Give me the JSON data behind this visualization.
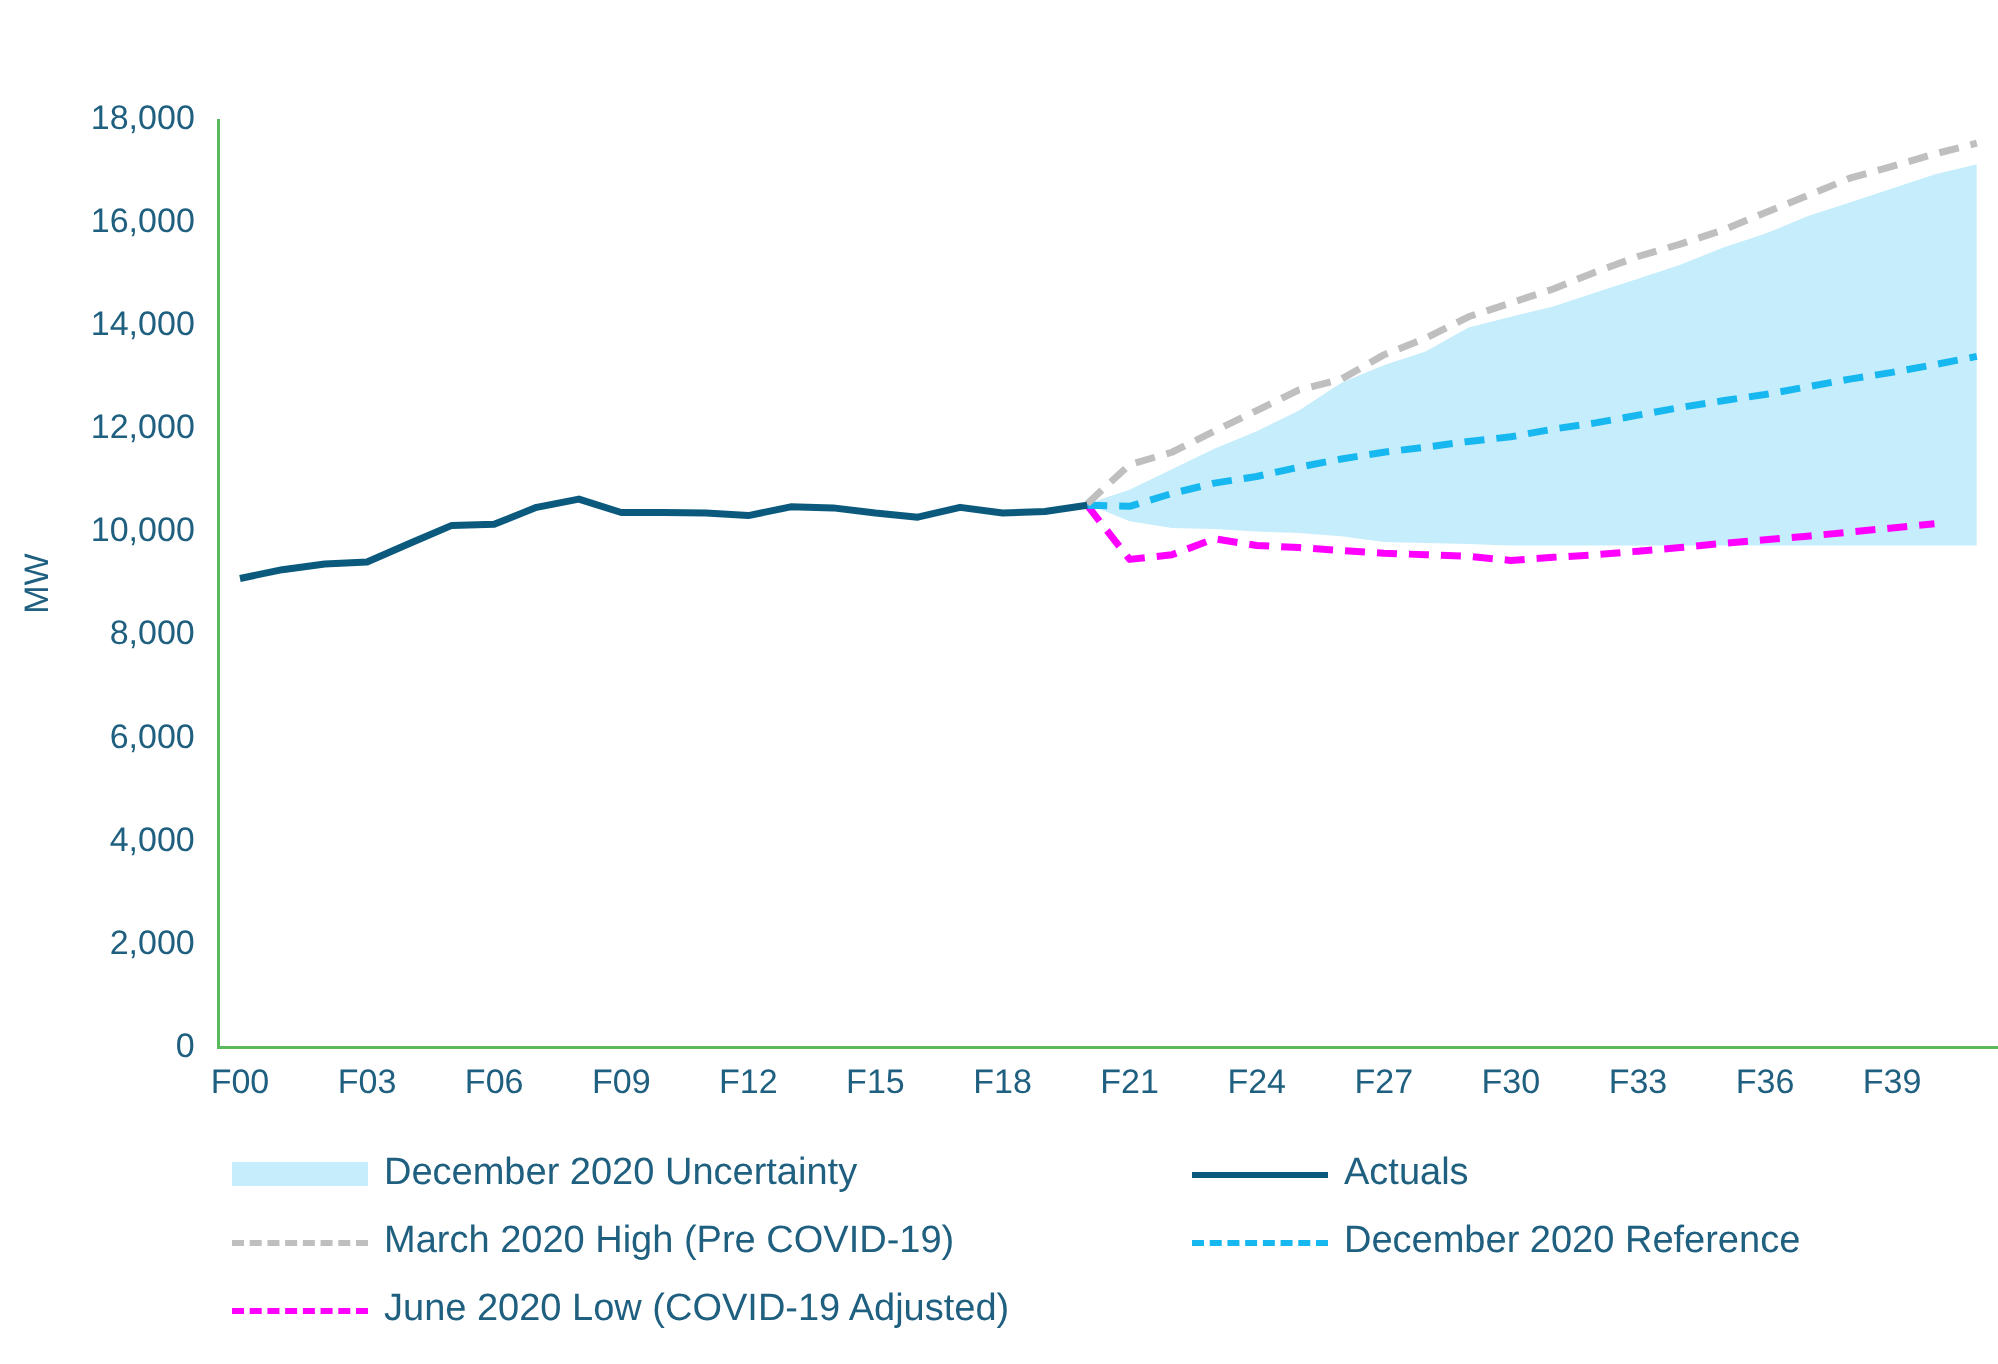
{
  "chart_data": {
    "type": "line",
    "ylabel": "MW",
    "categories": [
      "F00",
      null,
      null,
      "F03",
      null,
      null,
      "F06",
      null,
      null,
      "F09",
      null,
      null,
      "F12",
      null,
      null,
      "F15",
      null,
      null,
      "F18",
      null,
      null,
      "F21",
      null,
      null,
      "F24",
      null,
      null,
      "F27",
      null,
      null,
      "F30",
      null,
      null,
      "F33",
      null,
      null,
      "F36",
      null,
      null,
      "F39",
      null,
      null
    ],
    "ylim": [
      0,
      18000
    ],
    "yticks": [
      0,
      {
        "value": 2000,
        "label": "2,000"
      },
      {
        "value": 4000,
        "label": "4,000"
      },
      {
        "value": 6000,
        "label": "6,000"
      },
      {
        "value": 8000,
        "label": "8,000"
      },
      {
        "value": 10000,
        "label": "10,000"
      },
      {
        "value": 12000,
        "label": "12,000"
      },
      {
        "value": 14000,
        "label": "14,000"
      },
      {
        "value": 16000,
        "label": "16,000"
      },
      {
        "value": 18000,
        "label": "18,000"
      }
    ],
    "grid": false,
    "legend": "bottom",
    "marker": "none",
    "annotations": [
      "December 2020 Uncertainty"
    ],
    "series": [
      {
        "name": "Actuals",
        "color": "#0b5a7e",
        "line_style": "solid",
        "values": [
          9100,
          9270,
          9380,
          9420,
          9780,
          10130,
          10150,
          10480,
          10640,
          10380,
          10380,
          10370,
          10320,
          10490,
          10470,
          10370,
          10290,
          10480,
          10370,
          10400,
          10520,
          null,
          null,
          null,
          null,
          null,
          null,
          null,
          null,
          null,
          null,
          null,
          null,
          null,
          null,
          null,
          null,
          null,
          null,
          null,
          null,
          null
        ]
      },
      {
        "name": "March 2020 High (Pre COVID-19)",
        "color": "#bfbfbf",
        "line_style": "dashed",
        "values": [
          null,
          null,
          null,
          null,
          null,
          null,
          null,
          null,
          null,
          null,
          null,
          null,
          null,
          null,
          null,
          null,
          null,
          null,
          null,
          null,
          10550,
          11310,
          11550,
          11960,
          12360,
          12760,
          12970,
          13440,
          13770,
          14180,
          14450,
          14720,
          15050,
          15350,
          15590,
          15860,
          16200,
          16530,
          16870,
          17100,
          17340,
          17550
        ]
      },
      {
        "name": "December 2020 Reference",
        "color": "#17b8f0",
        "line_style": "dashed",
        "values": [
          null,
          null,
          null,
          null,
          null,
          null,
          null,
          null,
          null,
          null,
          null,
          null,
          null,
          null,
          null,
          null,
          null,
          null,
          null,
          null,
          10520,
          10500,
          10750,
          10950,
          11080,
          11260,
          11420,
          11550,
          11650,
          11760,
          11850,
          12000,
          12120,
          12270,
          12420,
          12550,
          12670,
          12820,
          12970,
          13100,
          13250,
          13410
        ],
        "lower": [
          null,
          null,
          null,
          null,
          null,
          null,
          null,
          null,
          null,
          null,
          null,
          null,
          null,
          null,
          null,
          null,
          null,
          null,
          null,
          null,
          10550,
          10210,
          10080,
          10060,
          10010,
          9980,
          9920,
          9810,
          9790,
          9770,
          9740,
          9740,
          9740,
          9740,
          9740,
          9740,
          9740,
          9740,
          9740,
          9740,
          9740,
          9740
        ],
        "upper": [
          null,
          null,
          null,
          null,
          null,
          null,
          null,
          null,
          null,
          null,
          null,
          null,
          null,
          null,
          null,
          null,
          null,
          null,
          null,
          null,
          10550,
          10820,
          11220,
          11620,
          11960,
          12360,
          12900,
          13240,
          13510,
          13970,
          14180,
          14380,
          14650,
          14920,
          15190,
          15520,
          15790,
          16130,
          16400,
          16670,
          16940,
          17140
        ]
      },
      {
        "name": "June 2020 Low (COVID-19 Adjusted)",
        "color": "#ff00ff",
        "line_style": "dashed",
        "values": [
          null,
          null,
          null,
          null,
          null,
          null,
          null,
          null,
          null,
          null,
          null,
          null,
          null,
          null,
          null,
          null,
          null,
          null,
          null,
          null,
          10520,
          9470,
          9560,
          9870,
          9740,
          9700,
          9640,
          9590,
          9560,
          9530,
          9450,
          9510,
          9560,
          9630,
          9700,
          9780,
          9850,
          9920,
          10000,
          10080,
          10160,
          null
        ]
      }
    ]
  }
}
